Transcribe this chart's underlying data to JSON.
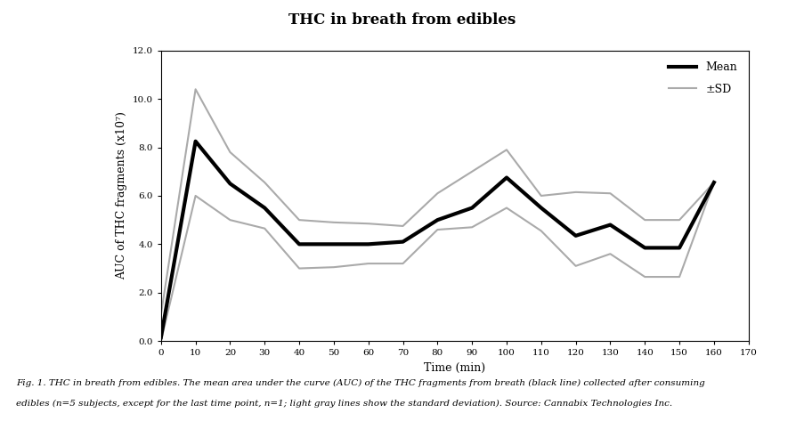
{
  "title": "THC in breath from edibles",
  "xlabel": "Time (min)",
  "ylabel": "AUC of THC fragments (x10⁷)",
  "mean_x": [
    0,
    10,
    20,
    30,
    40,
    50,
    60,
    70,
    80,
    90,
    100,
    110,
    120,
    130,
    140,
    150,
    160
  ],
  "mean_y": [
    0.15,
    8.25,
    6.5,
    5.5,
    4.0,
    4.0,
    4.0,
    4.1,
    5.0,
    5.5,
    6.75,
    5.5,
    4.35,
    4.8,
    3.85,
    3.85,
    6.55
  ],
  "sd_upper_x": [
    0,
    10,
    20,
    30,
    40,
    50,
    60,
    70,
    80,
    90,
    100,
    110,
    120,
    130,
    140,
    150,
    160
  ],
  "sd_upper_y": [
    1.1,
    10.4,
    7.8,
    6.55,
    5.0,
    4.9,
    4.85,
    4.75,
    6.1,
    7.0,
    7.9,
    6.0,
    6.15,
    6.1,
    5.0,
    5.0,
    6.55
  ],
  "sd_lower_x": [
    0,
    10,
    20,
    30,
    40,
    50,
    60,
    70,
    80,
    90,
    100,
    110,
    120,
    130,
    140,
    150,
    160
  ],
  "sd_lower_y": [
    0.0,
    6.0,
    5.0,
    4.65,
    3.0,
    3.05,
    3.2,
    3.2,
    4.6,
    4.7,
    5.5,
    4.55,
    3.1,
    3.6,
    2.65,
    2.65,
    6.55
  ],
  "ylim": [
    0.0,
    12.0
  ],
  "xlim": [
    0,
    170
  ],
  "xticks": [
    0,
    10,
    20,
    30,
    40,
    50,
    60,
    70,
    80,
    90,
    100,
    110,
    120,
    130,
    140,
    150,
    160,
    170
  ],
  "yticks": [
    0.0,
    2.0,
    4.0,
    6.0,
    8.0,
    10.0,
    12.0
  ],
  "mean_color": "#000000",
  "sd_color": "#aaaaaa",
  "mean_linewidth": 3.0,
  "sd_linewidth": 1.5,
  "legend_mean_label": "Mean",
  "legend_sd_label": "±SD",
  "fig_caption_line1": "Fig. 1. THC in breath from edibles. The mean area under the curve (AUC) of the THC fragments from breath (black line) collected after consuming",
  "fig_caption_line2": "edibles (n=5 subjects, except for the last time point, n=1; light gray lines show the standard deviation). Source: Cannabix Technologies Inc."
}
